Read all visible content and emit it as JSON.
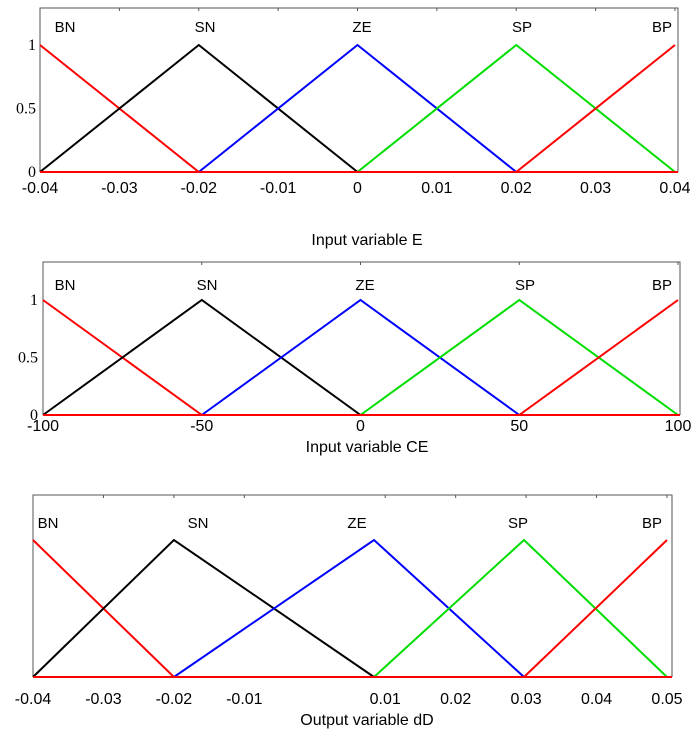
{
  "chart_data": [
    {
      "type": "line",
      "xlabel": "Input variable E",
      "ylabel": "",
      "xlim": [
        -0.04,
        0.04
      ],
      "ylim": [
        0,
        1
      ],
      "x_ticks": [
        "-0.04",
        "-0.03",
        "-0.02",
        "-0.01",
        "0",
        "0.01",
        "0.02",
        "0.03",
        "0.04"
      ],
      "x_tick_values": [
        -0.04,
        -0.03,
        -0.02,
        -0.01,
        0,
        0.01,
        0.02,
        0.03,
        0.04
      ],
      "y_ticks": [
        {
          "value": 0,
          "label": "0"
        },
        {
          "value": 0.5,
          "label": "0.5"
        },
        {
          "value": 1,
          "label": "1"
        }
      ],
      "series": [
        {
          "name": "BN",
          "color": "#ff0000",
          "x": [
            -0.04,
            -0.02,
            0.04
          ],
          "y": [
            1,
            0,
            0
          ]
        },
        {
          "name": "SN",
          "color": "#000000",
          "x": [
            -0.04,
            -0.02,
            0
          ],
          "y": [
            0,
            1,
            0
          ]
        },
        {
          "name": "ZE",
          "color": "#0000ff",
          "x": [
            -0.02,
            0,
            0.02
          ],
          "y": [
            0,
            1,
            0
          ]
        },
        {
          "name": "SP",
          "color": "#00dd00",
          "x": [
            0,
            0.02,
            0.04
          ],
          "y": [
            0,
            1,
            0
          ]
        },
        {
          "name": "BP",
          "color": "#ff0000",
          "x": [
            0.02,
            0.04
          ],
          "y": [
            0,
            1
          ]
        }
      ]
    },
    {
      "type": "line",
      "xlabel": "Input variable CE",
      "ylabel": "",
      "xlim": [
        -100,
        100
      ],
      "ylim": [
        0,
        1
      ],
      "x_ticks": [
        "-100",
        "-50",
        "0",
        "50",
        "100"
      ],
      "x_tick_values": [
        -100,
        -50,
        0,
        50,
        100
      ],
      "y_ticks": [
        {
          "value": 0,
          "label": "0"
        },
        {
          "value": 0.5,
          "label": "0.5"
        },
        {
          "value": 1,
          "label": "1"
        }
      ],
      "series": [
        {
          "name": "BN",
          "color": "#ff0000",
          "x": [
            -100,
            -50,
            100
          ],
          "y": [
            1,
            0,
            0
          ]
        },
        {
          "name": "SN",
          "color": "#000000",
          "x": [
            -100,
            -50,
            0
          ],
          "y": [
            0,
            1,
            0
          ]
        },
        {
          "name": "ZE",
          "color": "#0000ff",
          "x": [
            -50,
            0,
            50
          ],
          "y": [
            0,
            1,
            0
          ]
        },
        {
          "name": "SP",
          "color": "#00dd00",
          "x": [
            0,
            50,
            100
          ],
          "y": [
            0,
            1,
            0
          ]
        },
        {
          "name": "BP",
          "color": "#ff0000",
          "x": [
            50,
            100
          ],
          "y": [
            0,
            1
          ]
        }
      ]
    },
    {
      "type": "line",
      "xlabel": "Output variable dD",
      "ylabel": "",
      "xlim": [
        -0.04,
        0.05
      ],
      "ylim": [
        0,
        1
      ],
      "x_ticks": [
        "-0.04",
        "-0.03",
        "-0.02",
        "-0.01",
        "0.01",
        "0.02",
        "0.03",
        "0.04",
        "0.05"
      ],
      "x_tick_values": [
        -0.04,
        -0.03,
        -0.02,
        -0.01,
        0.01,
        0.02,
        0.03,
        0.04,
        0.05
      ],
      "y_ticks": [],
      "series": [
        {
          "name": "BN",
          "color": "#ff0000",
          "x": [
            -0.04,
            -0.02,
            0.05
          ],
          "y": [
            1,
            0,
            0
          ]
        },
        {
          "name": "SN",
          "color": "#000000",
          "x": [
            -0.04,
            -0.02,
            0.0084
          ],
          "y": [
            0,
            1,
            0
          ]
        },
        {
          "name": "ZE",
          "color": "#0000ff",
          "x": [
            -0.02,
            0.0084,
            0.0297
          ],
          "y": [
            0,
            1,
            0
          ]
        },
        {
          "name": "SP",
          "color": "#00dd00",
          "x": [
            0.0084,
            0.0297,
            0.05
          ],
          "y": [
            0,
            1,
            0
          ]
        },
        {
          "name": "BP",
          "color": "#ff0000",
          "x": [
            0.0297,
            0.05
          ],
          "y": [
            0,
            1
          ]
        }
      ]
    }
  ]
}
